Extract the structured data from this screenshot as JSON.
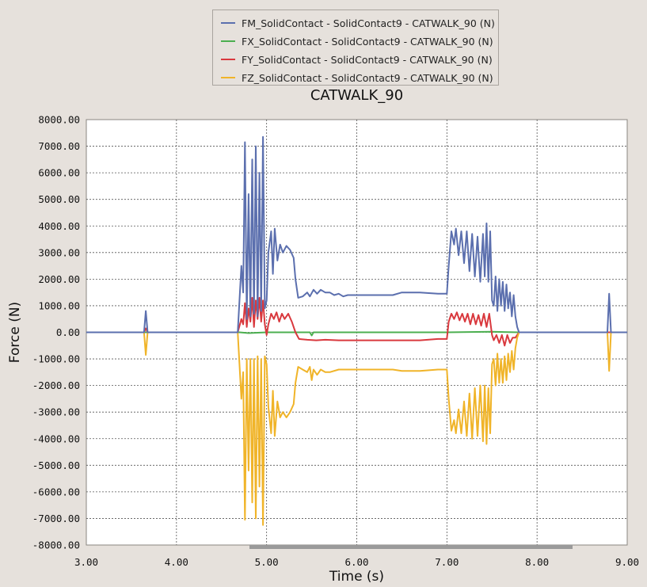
{
  "chart_data": {
    "type": "line",
    "title": "CATWALK_90",
    "xlabel": "Time (s)",
    "ylabel": "Force (N)",
    "xlim": [
      3.0,
      9.0
    ],
    "ylim": [
      -8000,
      8000
    ],
    "grid": true,
    "legend_position": "top-center",
    "x_ticks": [
      "3.00",
      "4.00",
      "5.00",
      "6.00",
      "7.00",
      "8.00",
      "9.00"
    ],
    "y_ticks": [
      "8000.00",
      "7000.00",
      "6000.00",
      "5000.00",
      "4000.00",
      "3000.00",
      "2000.00",
      "1000.00",
      "0.00",
      "-1000.00",
      "-2000.00",
      "-3000.00",
      "-4000.00",
      "-5000.00",
      "-6000.00",
      "-7000.00",
      "-8000.00"
    ],
    "y_tick_values": [
      8000,
      7000,
      6000,
      5000,
      4000,
      3000,
      2000,
      1000,
      0,
      -1000,
      -2000,
      -3000,
      -4000,
      -5000,
      -6000,
      -7000,
      -8000
    ],
    "x_tick_values": [
      3,
      4,
      5,
      6,
      7,
      8,
      9
    ],
    "series": [
      {
        "name": "FM_SolidContact - SolidContact9 - CATWALK_90 (N)",
        "color": "#5b6fae",
        "points": [
          [
            3.0,
            0
          ],
          [
            3.64,
            0
          ],
          [
            3.66,
            800
          ],
          [
            3.68,
            0
          ],
          [
            4.68,
            0
          ],
          [
            4.72,
            2500
          ],
          [
            4.74,
            1500
          ],
          [
            4.76,
            7150
          ],
          [
            4.78,
            500
          ],
          [
            4.8,
            5200
          ],
          [
            4.82,
            600
          ],
          [
            4.84,
            6500
          ],
          [
            4.86,
            700
          ],
          [
            4.88,
            7000
          ],
          [
            4.9,
            600
          ],
          [
            4.92,
            6000
          ],
          [
            4.94,
            800
          ],
          [
            4.96,
            7350
          ],
          [
            4.98,
            900
          ],
          [
            5.0,
            1200
          ],
          [
            5.02,
            3000
          ],
          [
            5.05,
            3800
          ],
          [
            5.07,
            2200
          ],
          [
            5.09,
            3900
          ],
          [
            5.12,
            2700
          ],
          [
            5.15,
            3300
          ],
          [
            5.18,
            3000
          ],
          [
            5.22,
            3250
          ],
          [
            5.26,
            3100
          ],
          [
            5.3,
            2800
          ],
          [
            5.32,
            2000
          ],
          [
            5.35,
            1300
          ],
          [
            5.4,
            1350
          ],
          [
            5.45,
            1500
          ],
          [
            5.48,
            1350
          ],
          [
            5.52,
            1600
          ],
          [
            5.56,
            1450
          ],
          [
            5.6,
            1600
          ],
          [
            5.65,
            1500
          ],
          [
            5.7,
            1500
          ],
          [
            5.75,
            1400
          ],
          [
            5.8,
            1450
          ],
          [
            5.85,
            1350
          ],
          [
            5.9,
            1400
          ],
          [
            6.0,
            1400
          ],
          [
            6.2,
            1400
          ],
          [
            6.4,
            1400
          ],
          [
            6.5,
            1500
          ],
          [
            6.7,
            1500
          ],
          [
            6.9,
            1450
          ],
          [
            7.0,
            1450
          ],
          [
            7.02,
            2500
          ],
          [
            7.05,
            3800
          ],
          [
            7.08,
            3300
          ],
          [
            7.1,
            3900
          ],
          [
            7.13,
            2900
          ],
          [
            7.16,
            3800
          ],
          [
            7.19,
            2600
          ],
          [
            7.22,
            3800
          ],
          [
            7.25,
            2300
          ],
          [
            7.28,
            3700
          ],
          [
            7.31,
            2100
          ],
          [
            7.34,
            3600
          ],
          [
            7.37,
            1900
          ],
          [
            7.4,
            3700
          ],
          [
            7.42,
            2100
          ],
          [
            7.44,
            4100
          ],
          [
            7.46,
            1900
          ],
          [
            7.48,
            3800
          ],
          [
            7.5,
            1200
          ],
          [
            7.52,
            1000
          ],
          [
            7.54,
            2100
          ],
          [
            7.56,
            800
          ],
          [
            7.58,
            2000
          ],
          [
            7.6,
            1000
          ],
          [
            7.62,
            1900
          ],
          [
            7.64,
            800
          ],
          [
            7.66,
            1800
          ],
          [
            7.68,
            900
          ],
          [
            7.7,
            1500
          ],
          [
            7.72,
            600
          ],
          [
            7.74,
            1400
          ],
          [
            7.76,
            600
          ],
          [
            7.78,
            200
          ],
          [
            7.8,
            0
          ],
          [
            8.78,
            0
          ],
          [
            8.8,
            1450
          ],
          [
            8.82,
            0
          ],
          [
            9.0,
            0
          ]
        ]
      },
      {
        "name": "FX_SolidContact - SolidContact9 - CATWALK_90 (N)",
        "color": "#4caf50",
        "points": [
          [
            3.0,
            0
          ],
          [
            4.7,
            0
          ],
          [
            4.8,
            -30
          ],
          [
            5.0,
            0
          ],
          [
            5.48,
            0
          ],
          [
            5.5,
            -120
          ],
          [
            5.52,
            0
          ],
          [
            7.0,
            0
          ],
          [
            7.5,
            20
          ],
          [
            7.8,
            0
          ],
          [
            9.0,
            0
          ]
        ]
      },
      {
        "name": "FY_SolidContact - SolidContact9 - CATWALK_90 (N)",
        "color": "#d9393e",
        "points": [
          [
            3.0,
            0
          ],
          [
            3.64,
            0
          ],
          [
            3.66,
            150
          ],
          [
            3.68,
            0
          ],
          [
            4.68,
            0
          ],
          [
            4.72,
            500
          ],
          [
            4.74,
            300
          ],
          [
            4.76,
            1100
          ],
          [
            4.78,
            200
          ],
          [
            4.8,
            900
          ],
          [
            4.82,
            400
          ],
          [
            4.84,
            1300
          ],
          [
            4.86,
            200
          ],
          [
            4.88,
            1200
          ],
          [
            4.9,
            500
          ],
          [
            4.92,
            1300
          ],
          [
            4.94,
            400
          ],
          [
            4.96,
            1200
          ],
          [
            4.98,
            300
          ],
          [
            5.0,
            -100
          ],
          [
            5.02,
            300
          ],
          [
            5.05,
            700
          ],
          [
            5.08,
            500
          ],
          [
            5.11,
            750
          ],
          [
            5.14,
            400
          ],
          [
            5.17,
            700
          ],
          [
            5.2,
            500
          ],
          [
            5.24,
            700
          ],
          [
            5.28,
            400
          ],
          [
            5.32,
            0
          ],
          [
            5.36,
            -250
          ],
          [
            5.45,
            -280
          ],
          [
            5.55,
            -300
          ],
          [
            5.65,
            -280
          ],
          [
            5.8,
            -300
          ],
          [
            6.0,
            -300
          ],
          [
            6.4,
            -300
          ],
          [
            6.7,
            -300
          ],
          [
            6.9,
            -250
          ],
          [
            7.0,
            -250
          ],
          [
            7.02,
            400
          ],
          [
            7.05,
            700
          ],
          [
            7.08,
            500
          ],
          [
            7.11,
            750
          ],
          [
            7.14,
            450
          ],
          [
            7.17,
            700
          ],
          [
            7.2,
            400
          ],
          [
            7.23,
            700
          ],
          [
            7.26,
            300
          ],
          [
            7.29,
            700
          ],
          [
            7.32,
            300
          ],
          [
            7.35,
            650
          ],
          [
            7.38,
            250
          ],
          [
            7.41,
            700
          ],
          [
            7.44,
            200
          ],
          [
            7.47,
            700
          ],
          [
            7.5,
            -100
          ],
          [
            7.52,
            -300
          ],
          [
            7.55,
            -100
          ],
          [
            7.58,
            -400
          ],
          [
            7.61,
            -100
          ],
          [
            7.64,
            -500
          ],
          [
            7.67,
            -100
          ],
          [
            7.7,
            -400
          ],
          [
            7.73,
            -200
          ],
          [
            7.76,
            -200
          ],
          [
            7.8,
            0
          ],
          [
            9.0,
            0
          ]
        ]
      },
      {
        "name": "FZ_SolidContact - SolidContact9 - CATWALK_90 (N)",
        "color": "#f0b429",
        "points": [
          [
            3.0,
            0
          ],
          [
            3.64,
            0
          ],
          [
            3.66,
            -850
          ],
          [
            3.68,
            0
          ],
          [
            4.68,
            0
          ],
          [
            4.72,
            -2500
          ],
          [
            4.74,
            -1500
          ],
          [
            4.76,
            -7050
          ],
          [
            4.78,
            -1000
          ],
          [
            4.8,
            -5200
          ],
          [
            4.82,
            -1000
          ],
          [
            4.84,
            -6400
          ],
          [
            4.86,
            -1000
          ],
          [
            4.88,
            -7000
          ],
          [
            4.9,
            -900
          ],
          [
            4.92,
            -5800
          ],
          [
            4.94,
            -1000
          ],
          [
            4.96,
            -7250
          ],
          [
            4.98,
            -900
          ],
          [
            5.0,
            -1200
          ],
          [
            5.02,
            -2800
          ],
          [
            5.05,
            -3800
          ],
          [
            5.07,
            -2200
          ],
          [
            5.09,
            -3900
          ],
          [
            5.12,
            -2600
          ],
          [
            5.15,
            -3200
          ],
          [
            5.18,
            -3000
          ],
          [
            5.22,
            -3200
          ],
          [
            5.26,
            -3000
          ],
          [
            5.3,
            -2700
          ],
          [
            5.32,
            -1900
          ],
          [
            5.35,
            -1300
          ],
          [
            5.4,
            -1400
          ],
          [
            5.45,
            -1500
          ],
          [
            5.48,
            -1300
          ],
          [
            5.5,
            -1800
          ],
          [
            5.52,
            -1400
          ],
          [
            5.56,
            -1600
          ],
          [
            5.6,
            -1400
          ],
          [
            5.65,
            -1500
          ],
          [
            5.7,
            -1500
          ],
          [
            5.8,
            -1400
          ],
          [
            5.9,
            -1400
          ],
          [
            6.0,
            -1400
          ],
          [
            6.2,
            -1400
          ],
          [
            6.4,
            -1400
          ],
          [
            6.5,
            -1450
          ],
          [
            6.7,
            -1450
          ],
          [
            6.9,
            -1400
          ],
          [
            7.0,
            -1400
          ],
          [
            7.02,
            -2500
          ],
          [
            7.05,
            -3700
          ],
          [
            7.08,
            -3300
          ],
          [
            7.1,
            -3800
          ],
          [
            7.13,
            -2900
          ],
          [
            7.16,
            -3800
          ],
          [
            7.19,
            -2600
          ],
          [
            7.22,
            -3900
          ],
          [
            7.25,
            -2300
          ],
          [
            7.28,
            -4000
          ],
          [
            7.31,
            -2100
          ],
          [
            7.34,
            -3900
          ],
          [
            7.37,
            -2000
          ],
          [
            7.4,
            -4100
          ],
          [
            7.42,
            -2000
          ],
          [
            7.44,
            -4200
          ],
          [
            7.46,
            -2100
          ],
          [
            7.48,
            -3800
          ],
          [
            7.5,
            -1200
          ],
          [
            7.52,
            -1000
          ],
          [
            7.54,
            -2000
          ],
          [
            7.56,
            -800
          ],
          [
            7.58,
            -1900
          ],
          [
            7.6,
            -1000
          ],
          [
            7.62,
            -1900
          ],
          [
            7.64,
            -900
          ],
          [
            7.66,
            -1800
          ],
          [
            7.68,
            -800
          ],
          [
            7.7,
            -1500
          ],
          [
            7.72,
            -700
          ],
          [
            7.74,
            -1400
          ],
          [
            7.76,
            -600
          ],
          [
            7.78,
            -200
          ],
          [
            7.8,
            0
          ],
          [
            8.78,
            0
          ],
          [
            8.8,
            -1450
          ],
          [
            8.82,
            0
          ],
          [
            9.0,
            0
          ]
        ]
      }
    ]
  }
}
